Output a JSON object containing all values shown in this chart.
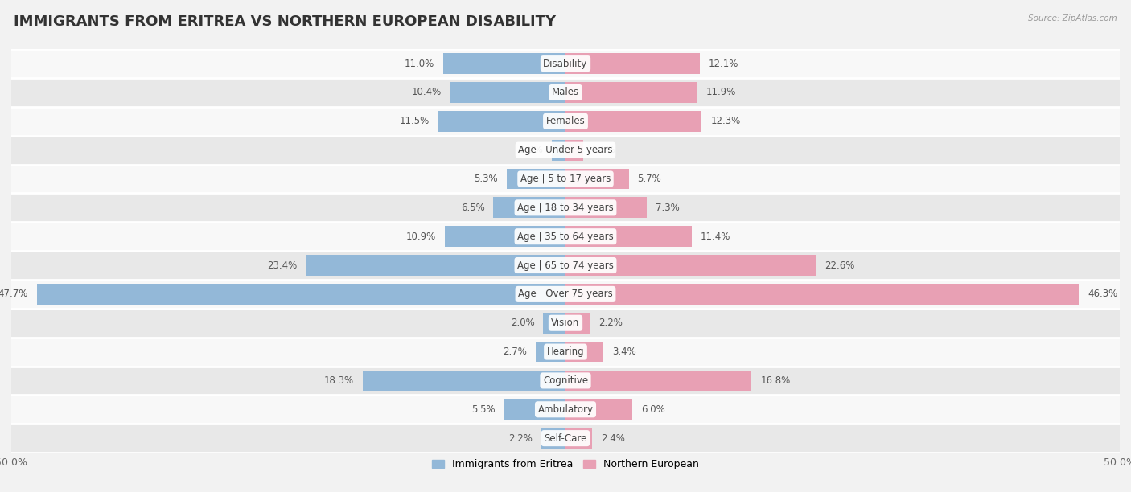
{
  "title": "IMMIGRANTS FROM ERITREA VS NORTHERN EUROPEAN DISABILITY",
  "source": "Source: ZipAtlas.com",
  "categories": [
    "Disability",
    "Males",
    "Females",
    "Age | Under 5 years",
    "Age | 5 to 17 years",
    "Age | 18 to 34 years",
    "Age | 35 to 64 years",
    "Age | 65 to 74 years",
    "Age | Over 75 years",
    "Vision",
    "Hearing",
    "Cognitive",
    "Ambulatory",
    "Self-Care"
  ],
  "left_values": [
    11.0,
    10.4,
    11.5,
    1.2,
    5.3,
    6.5,
    10.9,
    23.4,
    47.7,
    2.0,
    2.7,
    18.3,
    5.5,
    2.2
  ],
  "right_values": [
    12.1,
    11.9,
    12.3,
    1.6,
    5.7,
    7.3,
    11.4,
    22.6,
    46.3,
    2.2,
    3.4,
    16.8,
    6.0,
    2.4
  ],
  "left_color": "#93b8d8",
  "right_color": "#e8a0b4",
  "left_label": "Immigrants from Eritrea",
  "right_label": "Northern European",
  "axis_max": 50.0,
  "bg_color": "#f2f2f2",
  "row_bg_light": "#f8f8f8",
  "row_bg_dark": "#e8e8e8",
  "bar_height": 0.72,
  "title_fontsize": 13,
  "label_fontsize": 8.5,
  "value_fontsize": 8.5,
  "tick_fontsize": 9,
  "legend_fontsize": 9
}
